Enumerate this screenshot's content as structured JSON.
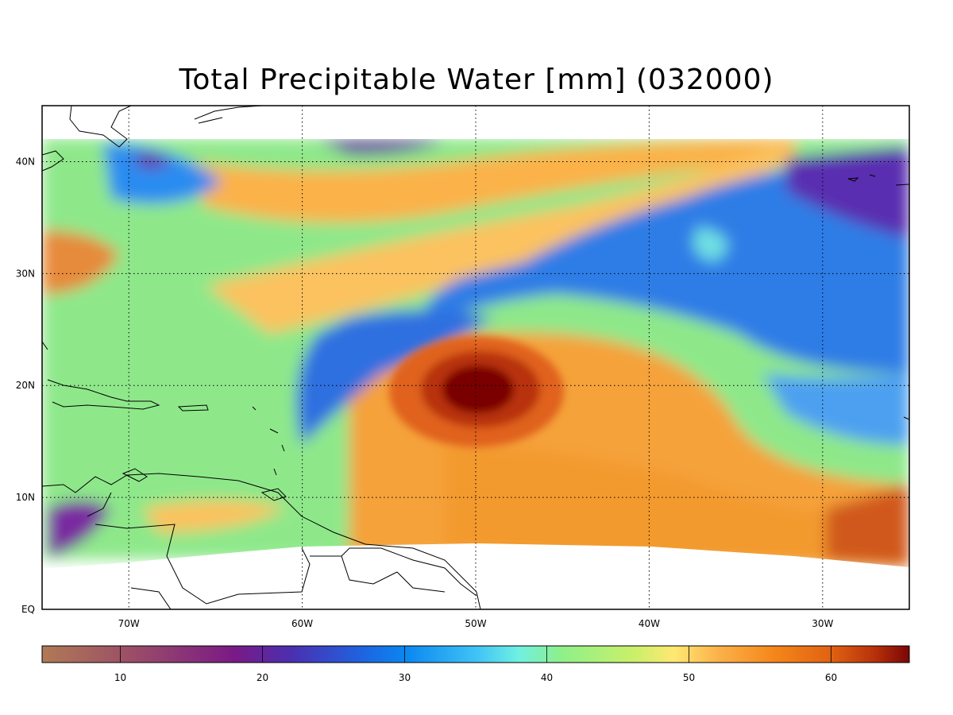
{
  "title": "Total Precipitable Water [mm]  (032000)",
  "map": {
    "lat_range": [
      0,
      45
    ],
    "lon_range": [
      -75,
      -25
    ],
    "lat_ticks": [
      {
        "value": 40,
        "label": "40N"
      },
      {
        "value": 30,
        "label": "30N"
      },
      {
        "value": 20,
        "label": "20N"
      },
      {
        "value": 10,
        "label": "10N"
      },
      {
        "value": 0,
        "label": "EQ"
      }
    ],
    "lon_ticks": [
      {
        "value": -70,
        "label": "70W"
      },
      {
        "value": -60,
        "label": "60W"
      },
      {
        "value": -50,
        "label": "50W"
      },
      {
        "value": -40,
        "label": "40W"
      },
      {
        "value": -30,
        "label": "30W"
      }
    ],
    "gridlines": "dotted",
    "storm_center": {
      "lon": -50,
      "lat": 19.5
    }
  },
  "colorbar": {
    "min": 4.5,
    "max": 65.5,
    "ticks": [
      {
        "value": 10,
        "label": "10"
      },
      {
        "value": 20,
        "label": "20"
      },
      {
        "value": 30,
        "label": "30"
      },
      {
        "value": 40,
        "label": "40"
      },
      {
        "value": 50,
        "label": "50"
      },
      {
        "value": 60,
        "label": "60"
      }
    ],
    "stops": [
      {
        "v": 4.5,
        "c": "#b07a55"
      },
      {
        "v": 11,
        "c": "#9a4c68"
      },
      {
        "v": 18,
        "c": "#7a1a86"
      },
      {
        "v": 22,
        "c": "#4b2fb0"
      },
      {
        "v": 27,
        "c": "#1f63e0"
      },
      {
        "v": 30,
        "c": "#0a86f0"
      },
      {
        "v": 35,
        "c": "#3fc2f6"
      },
      {
        "v": 38,
        "c": "#6ff0e2"
      },
      {
        "v": 41,
        "c": "#8ef08a"
      },
      {
        "v": 46,
        "c": "#c8f06a"
      },
      {
        "v": 49,
        "c": "#ffe872"
      },
      {
        "v": 52,
        "c": "#fbb24a"
      },
      {
        "v": 56,
        "c": "#f5861a"
      },
      {
        "v": 60,
        "c": "#e06212"
      },
      {
        "v": 63,
        "c": "#b8320a"
      },
      {
        "v": 65.5,
        "c": "#7a0606"
      }
    ]
  }
}
